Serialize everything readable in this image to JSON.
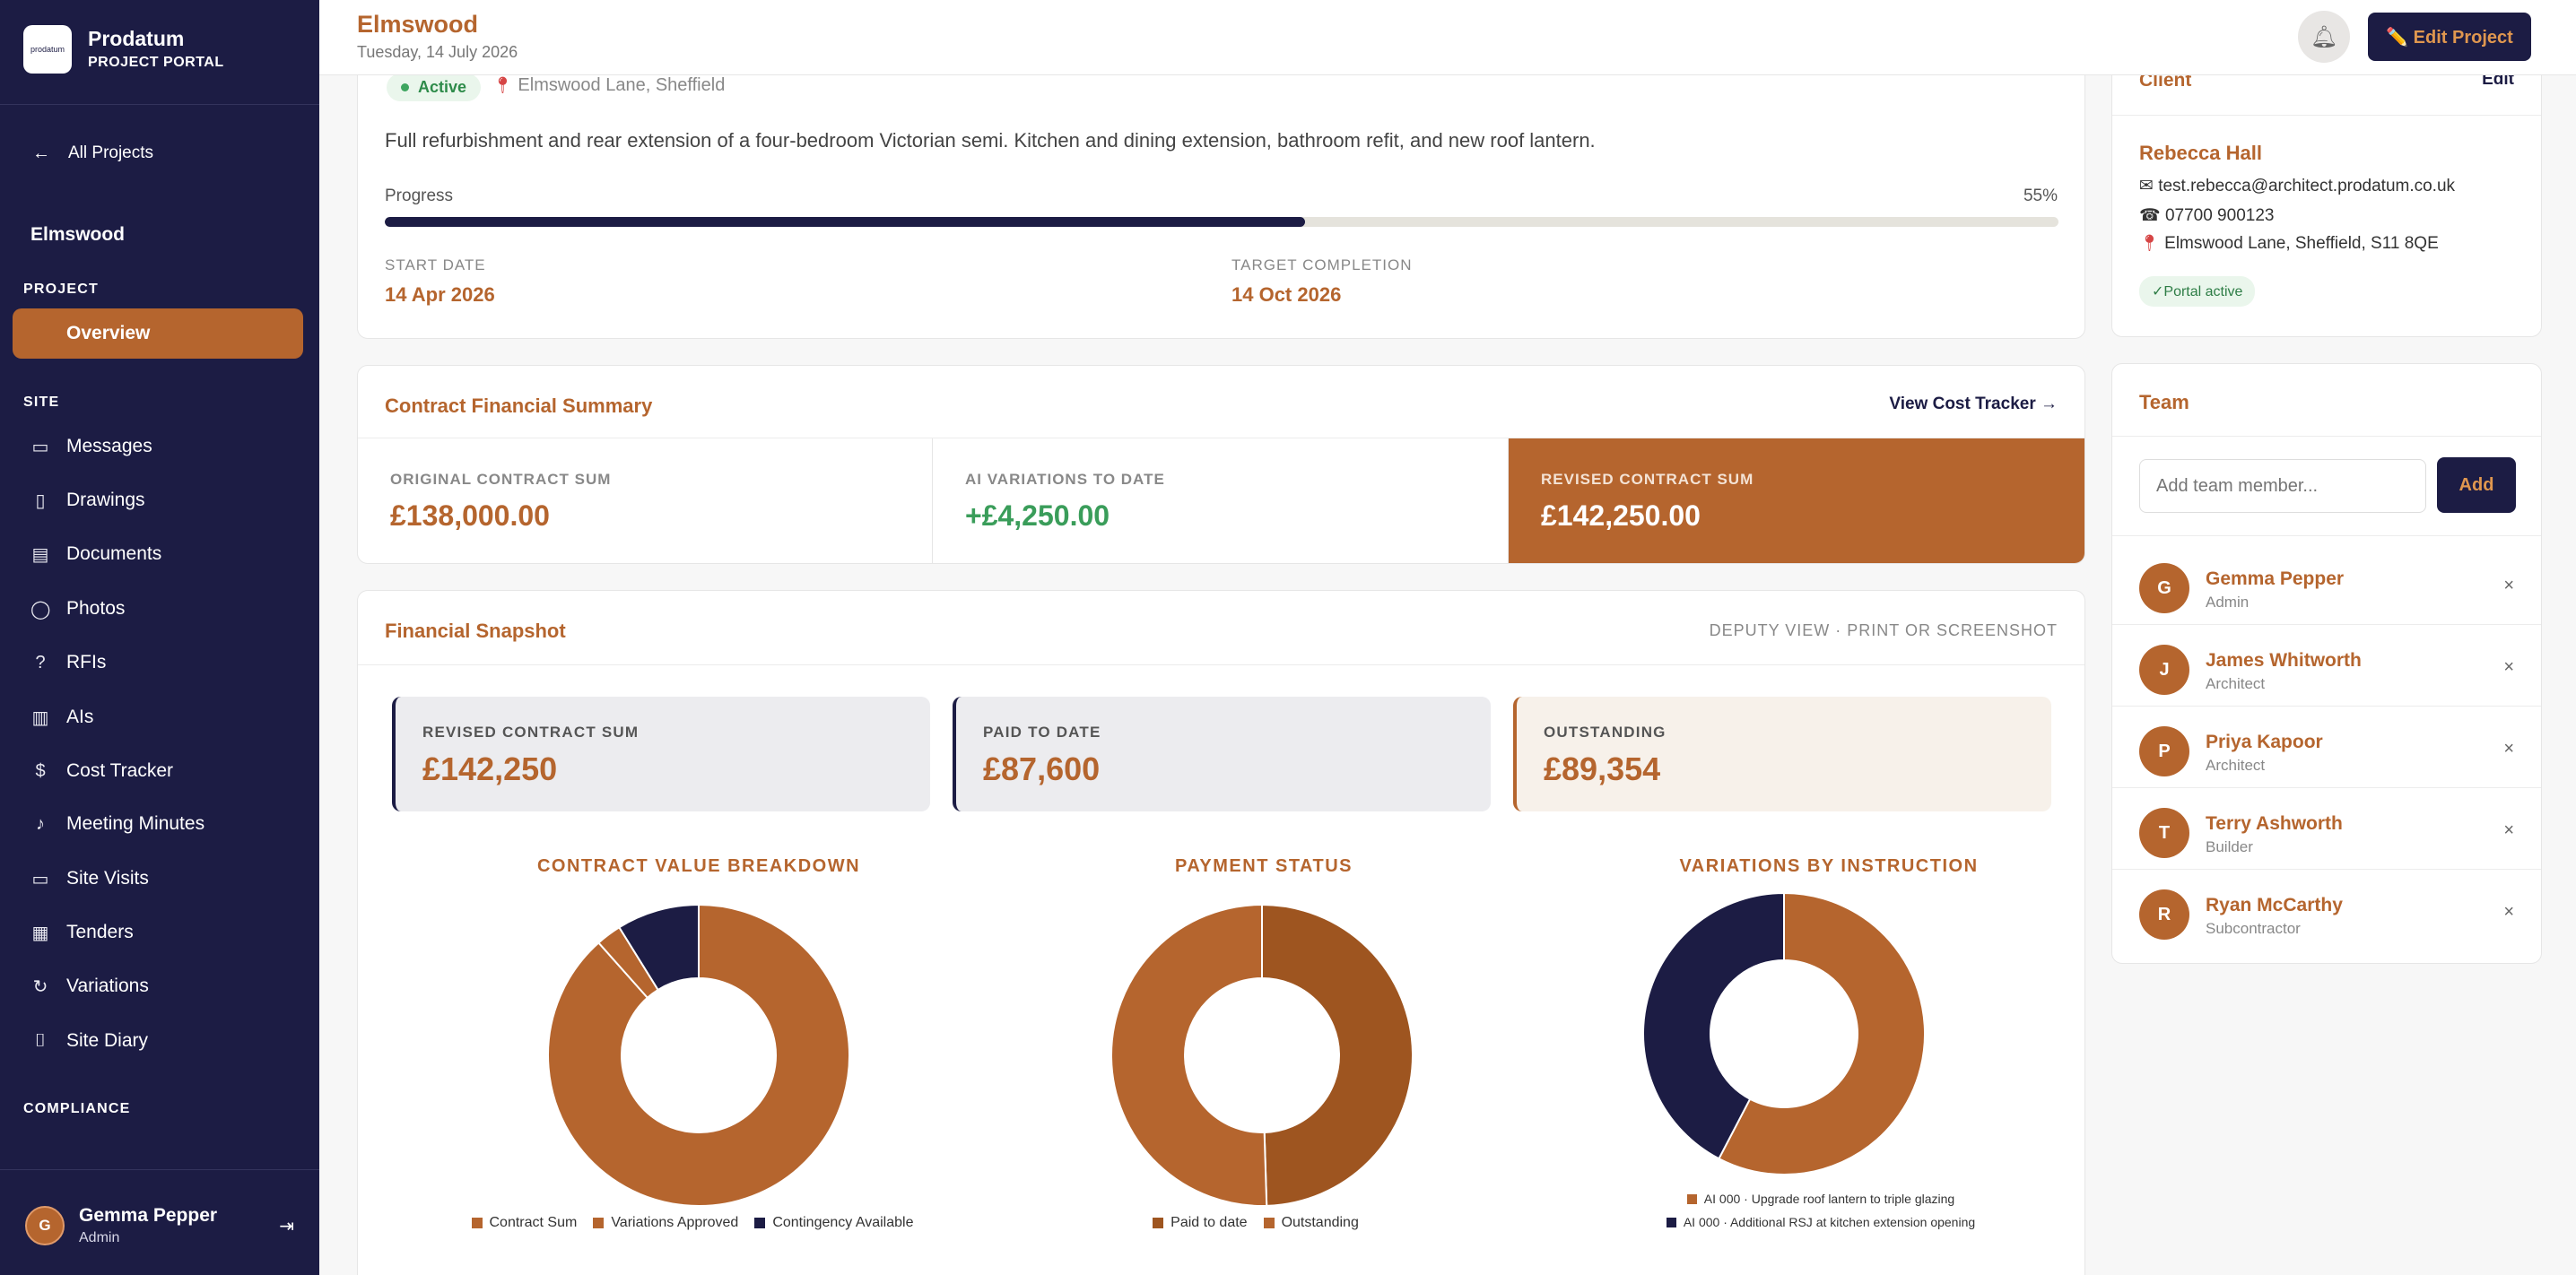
{
  "brand": {
    "logo_text": "prodatum",
    "name": "Prodatum",
    "subtitle": "PROJECT PORTAL"
  },
  "sidebar": {
    "all_projects": "All Projects",
    "project_name": "Elmswood",
    "sections": {
      "project": "PROJECT",
      "site": "SITE",
      "compliance": "COMPLIANCE"
    },
    "active_item": "Overview",
    "items": [
      {
        "label": "Messages",
        "icon": "message-icon"
      },
      {
        "label": "Drawings",
        "icon": "file-icon"
      },
      {
        "label": "Documents",
        "icon": "document-icon"
      },
      {
        "label": "Photos",
        "icon": "photo-icon"
      },
      {
        "label": "RFIs",
        "icon": "help-icon"
      },
      {
        "label": "AIs",
        "icon": "clipboard-icon"
      },
      {
        "label": "Cost Tracker",
        "icon": "dollar-icon"
      },
      {
        "label": "Meeting Minutes",
        "icon": "microphone-icon"
      },
      {
        "label": "Site Visits",
        "icon": "message-icon"
      },
      {
        "label": "Tenders",
        "icon": "calendar-icon"
      },
      {
        "label": "Variations",
        "icon": "refresh-icon"
      },
      {
        "label": "Site Diary",
        "icon": "bookmark-icon"
      }
    ],
    "user": {
      "initial": "G",
      "name": "Gemma Pepper",
      "role": "Admin"
    }
  },
  "header": {
    "title": "Elmswood",
    "date": "Tuesday, 14 July 2026",
    "edit_label": "✏️ Edit Project"
  },
  "overview": {
    "status": "Active",
    "location": "Elmswood Lane, Sheffield",
    "description": "Full refurbishment and rear extension of a four-bedroom Victorian semi. Kitchen and dining extension, bathroom refit, and new roof lantern.",
    "progress_label": "Progress",
    "progress_text": "55%",
    "progress_value": 0.55,
    "start_label": "START DATE",
    "start_value": "14 Apr 2026",
    "target_label": "TARGET COMPLETION",
    "target_value": "14 Oct 2026"
  },
  "client": {
    "heading": "Client",
    "edit": "Edit",
    "name": "Rebecca Hall",
    "email": "✉ test.rebecca@architect.prodatum.co.uk",
    "phone": "☎ 07700 900123",
    "address": "Elmswood Lane, Sheffield, S11 8QE",
    "portal": "✓Portal active"
  },
  "team": {
    "heading": "Team",
    "input_placeholder": "Add team member...",
    "add_label": "Add",
    "members": [
      {
        "initial": "G",
        "name": "Gemma Pepper",
        "role": "Admin"
      },
      {
        "initial": "J",
        "name": "James Whitworth",
        "role": "Architect"
      },
      {
        "initial": "P",
        "name": "Priya Kapoor",
        "role": "Architect"
      },
      {
        "initial": "T",
        "name": "Terry Ashworth",
        "role": "Builder"
      },
      {
        "initial": "R",
        "name": "Ryan McCarthy",
        "role": "Subcontractor"
      }
    ],
    "remove_symbol": "×"
  },
  "contract_summary": {
    "title": "Contract Financial Summary",
    "link": "View Cost Tracker →",
    "original_label": "ORIGINAL CONTRACT SUM",
    "original_value": "£138,000.00",
    "variations_label": "AI VARIATIONS TO DATE",
    "variations_value": "+£4,250.00",
    "revised_label": "REVISED CONTRACT SUM",
    "revised_value": "£142,250.00"
  },
  "snapshot": {
    "title": "Financial Snapshot",
    "note": "DEPUTY VIEW · PRINT OR SCREENSHOT",
    "kpis": [
      {
        "label": "REVISED CONTRACT SUM",
        "value": "£142,250"
      },
      {
        "label": "PAID TO DATE",
        "value": "£87,600"
      },
      {
        "label": "OUTSTANDING",
        "value": "£89,354"
      }
    ]
  },
  "colors": {
    "navy": "#1c1c44",
    "brand": "#b5652e",
    "brand_dark": "#9e5520",
    "green": "#3a9d5a"
  },
  "chart_data": [
    {
      "type": "pie",
      "title": "CONTRACT VALUE BREAKDOWN",
      "categories": [
        "Contract Sum",
        "Variations Approved",
        "Contingency Available"
      ],
      "values": [
        138000,
        4250,
        13800
      ],
      "colors": [
        "#b5652e",
        "#b5652e",
        "#1c1c44"
      ]
    },
    {
      "type": "pie",
      "title": "PAYMENT STATUS",
      "categories": [
        "Paid to date",
        "Outstanding"
      ],
      "values": [
        87600,
        89354
      ],
      "colors": [
        "#9e5520",
        "#b5652e"
      ]
    },
    {
      "type": "pie",
      "title": "VARIATIONS BY INSTRUCTION",
      "categories": [
        "AI 000 · Upgrade roof lantern to triple glazing",
        "AI 000 · Additional RSJ at kitchen extension opening"
      ],
      "values": [
        2450,
        1800
      ],
      "colors": [
        "#b5652e",
        "#1c1c44"
      ]
    }
  ]
}
